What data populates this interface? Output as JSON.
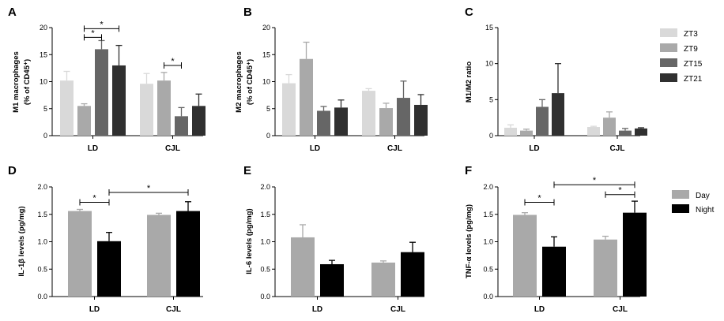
{
  "colors": {
    "ZT3": "#d9d9d9",
    "ZT9": "#a9a9a9",
    "ZT15": "#666666",
    "ZT21": "#303030",
    "Day": "#a9a9a9",
    "Night": "#000000"
  },
  "chart_data": [
    {
      "id": "A",
      "type": "bar",
      "panel_label": "A",
      "ylabel_lines": [
        "M1 macrophages",
        "(% of CD45⁺)"
      ],
      "categories": [
        "LD",
        "CJL"
      ],
      "ylim": [
        0,
        20
      ],
      "yticks": [
        "0",
        "5",
        "10",
        "15",
        "20"
      ],
      "ytick_values": [
        0,
        5,
        10,
        15,
        20
      ],
      "series": [
        {
          "name": "ZT3",
          "values": [
            10.2,
            9.6
          ],
          "errors": [
            1.7,
            1.9
          ]
        },
        {
          "name": "ZT9",
          "values": [
            5.5,
            10.2
          ],
          "errors": [
            0.4,
            1.5
          ]
        },
        {
          "name": "ZT15",
          "values": [
            16.0,
            3.6
          ],
          "errors": [
            1.6,
            1.6
          ]
        },
        {
          "name": "ZT21",
          "values": [
            13.0,
            5.5
          ],
          "errors": [
            3.7,
            2.2
          ]
        }
      ],
      "significance": [
        {
          "label": "*",
          "from": [
            0,
            1
          ],
          "to": [
            0,
            2
          ],
          "y": 18.2
        },
        {
          "label": "*",
          "from": [
            0,
            1
          ],
          "to": [
            0,
            3
          ],
          "y": 19.8
        },
        {
          "label": "*",
          "from": [
            1,
            1
          ],
          "to": [
            1,
            2
          ],
          "y": 13.0
        }
      ]
    },
    {
      "id": "B",
      "type": "bar",
      "panel_label": "B",
      "ylabel_lines": [
        "M2 macrophages",
        "(% of CD45⁺)"
      ],
      "categories": [
        "LD",
        "CJL"
      ],
      "ylim": [
        0,
        20
      ],
      "yticks": [
        "0",
        "5",
        "10",
        "15",
        "20"
      ],
      "ytick_values": [
        0,
        5,
        10,
        15,
        20
      ],
      "series": [
        {
          "name": "ZT3",
          "values": [
            9.7,
            8.3
          ],
          "errors": [
            1.6,
            0.4
          ]
        },
        {
          "name": "ZT9",
          "values": [
            14.2,
            5.1
          ],
          "errors": [
            3.1,
            0.9
          ]
        },
        {
          "name": "ZT15",
          "values": [
            4.6,
            7.0
          ],
          "errors": [
            0.8,
            3.1
          ]
        },
        {
          "name": "ZT21",
          "values": [
            5.2,
            5.7
          ],
          "errors": [
            1.4,
            1.9
          ]
        }
      ],
      "significance": []
    },
    {
      "id": "C",
      "type": "bar",
      "panel_label": "C",
      "ylabel_lines": [
        "M1/M2 ratio"
      ],
      "categories": [
        "LD",
        "CJL"
      ],
      "ylim": [
        0,
        15
      ],
      "yticks": [
        "0",
        "5",
        "10",
        "15"
      ],
      "ytick_values": [
        0,
        5,
        10,
        15
      ],
      "series": [
        {
          "name": "ZT3",
          "values": [
            1.1,
            1.2
          ],
          "errors": [
            0.4,
            0.1
          ]
        },
        {
          "name": "ZT9",
          "values": [
            0.7,
            2.5
          ],
          "errors": [
            0.2,
            0.8
          ]
        },
        {
          "name": "ZT15",
          "values": [
            4.0,
            0.7
          ],
          "errors": [
            1.0,
            0.3
          ]
        },
        {
          "name": "ZT21",
          "values": [
            5.9,
            1.0
          ],
          "errors": [
            4.1,
            0.1
          ]
        }
      ],
      "significance": [],
      "legend": [
        "ZT3",
        "ZT9",
        "ZT15",
        "ZT21"
      ]
    },
    {
      "id": "D",
      "type": "bar",
      "panel_label": "D",
      "ylabel_lines": [
        "IL-1β levels (pg/mg)"
      ],
      "categories": [
        "LD",
        "CJL"
      ],
      "ylim": [
        0,
        2.0
      ],
      "yticks": [
        "0.0",
        "0.5",
        "1.0",
        "1.5",
        "2.0"
      ],
      "ytick_values": [
        0,
        0.5,
        1.0,
        1.5,
        2.0
      ],
      "series": [
        {
          "name": "Day",
          "values": [
            1.56,
            1.49
          ],
          "errors": [
            0.03,
            0.03
          ]
        },
        {
          "name": "Night",
          "values": [
            1.01,
            1.56
          ],
          "errors": [
            0.16,
            0.17
          ]
        }
      ],
      "significance": [
        {
          "label": "*",
          "from": [
            0,
            0
          ],
          "to": [
            0,
            1
          ],
          "y": 1.72
        },
        {
          "label": "*",
          "from": [
            0,
            1
          ],
          "to": [
            1,
            1
          ],
          "y": 1.9
        }
      ]
    },
    {
      "id": "E",
      "type": "bar",
      "panel_label": "E",
      "ylabel_lines": [
        "IL-6 levels (pg/mg)"
      ],
      "categories": [
        "LD",
        "CJL"
      ],
      "ylim": [
        0,
        2.0
      ],
      "yticks": [
        "0.0",
        "0.5",
        "1.0",
        "1.5",
        "2.0"
      ],
      "ytick_values": [
        0,
        0.5,
        1.0,
        1.5,
        2.0
      ],
      "series": [
        {
          "name": "Day",
          "values": [
            1.08,
            0.62
          ],
          "errors": [
            0.23,
            0.03
          ]
        },
        {
          "name": "Night",
          "values": [
            0.59,
            0.81
          ],
          "errors": [
            0.07,
            0.18
          ]
        }
      ],
      "significance": []
    },
    {
      "id": "F",
      "type": "bar",
      "panel_label": "F",
      "ylabel_lines": [
        "TNF-α levels (pg/mg)"
      ],
      "categories": [
        "LD",
        "CJL"
      ],
      "ylim": [
        0,
        2.0
      ],
      "yticks": [
        "0.0",
        "0.5",
        "1.0",
        "1.5",
        "2.0"
      ],
      "ytick_values": [
        0,
        0.5,
        1.0,
        1.5,
        2.0
      ],
      "series": [
        {
          "name": "Day",
          "values": [
            1.49,
            1.04
          ],
          "errors": [
            0.04,
            0.06
          ]
        },
        {
          "name": "Night",
          "values": [
            0.91,
            1.53
          ],
          "errors": [
            0.18,
            0.21
          ]
        }
      ],
      "significance": [
        {
          "label": "*",
          "from": [
            0,
            0
          ],
          "to": [
            0,
            1
          ],
          "y": 1.72
        },
        {
          "label": "*",
          "from": [
            1,
            0
          ],
          "to": [
            1,
            1
          ],
          "y": 1.86
        },
        {
          "label": "*",
          "from": [
            0,
            1
          ],
          "to": [
            1,
            1
          ],
          "y": 2.04
        }
      ],
      "legend": [
        "Day",
        "Night"
      ]
    }
  ]
}
